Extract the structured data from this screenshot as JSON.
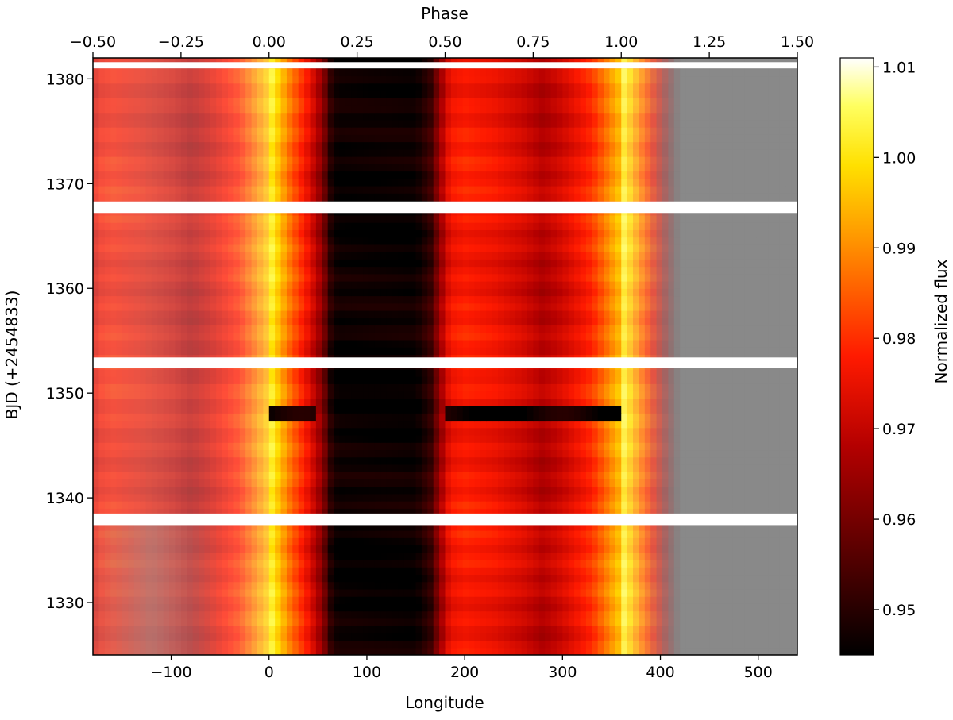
{
  "chart_data": {
    "type": "heatmap",
    "xlabel": "Longitude",
    "ylabel": "BJD (+2454833)",
    "top_xlabel": "Phase",
    "colorbar_label": "Normalized flux",
    "colormap": "afmhot",
    "xlim": [
      -180,
      540
    ],
    "ylim": [
      1325,
      1382
    ],
    "phase_lim": [
      -0.5,
      1.5
    ],
    "clim": [
      0.945,
      1.011
    ],
    "x_ticks": [
      -100,
      0,
      100,
      200,
      300,
      400,
      500
    ],
    "x_tick_labels": [
      "−100",
      "0",
      "100",
      "200",
      "300",
      "400",
      "500"
    ],
    "y_ticks": [
      1330,
      1340,
      1350,
      1360,
      1370,
      1380
    ],
    "y_tick_labels": [
      "1330",
      "1340",
      "1350",
      "1360",
      "1370",
      "1380"
    ],
    "phase_ticks": [
      -0.5,
      -0.25,
      0.0,
      0.25,
      0.5,
      0.75,
      1.0,
      1.25,
      1.5
    ],
    "phase_tick_labels": [
      "−0.50",
      "−0.25",
      "0.00",
      "0.25",
      "0.50",
      "0.75",
      "1.00",
      "1.25",
      "1.50"
    ],
    "colorbar_ticks": [
      0.95,
      0.96,
      0.97,
      0.98,
      0.99,
      1.0,
      1.01
    ],
    "colorbar_tick_labels": [
      "0.95",
      "0.96",
      "0.97",
      "0.98",
      "0.99",
      "1.00",
      "1.01"
    ],
    "flux_profile": {
      "longitude": [
        0,
        20,
        40,
        55,
        62,
        70,
        100,
        150,
        165,
        175,
        185,
        200,
        230,
        260,
        280,
        300,
        330,
        345,
        359.9
      ],
      "flux": [
        1.004,
        0.988,
        0.975,
        0.962,
        0.95,
        0.946,
        0.946,
        0.946,
        0.952,
        0.965,
        0.976,
        0.978,
        0.976,
        0.972,
        0.968,
        0.972,
        0.98,
        0.988,
        0.996
      ]
    },
    "duplicated_regions": [
      {
        "longitude_range": [
          -180,
          0
        ],
        "source": "phase 0.5 to 1.0, lightened"
      },
      {
        "longitude_range": [
          360,
          420
        ],
        "source": "phase 0.0 to 0.17, lightened"
      },
      {
        "longitude_range": [
          420,
          540
        ],
        "source": "masked (gray)"
      }
    ],
    "data_gaps": [
      {
        "bjd": [
          1381.0,
          1381.6
        ],
        "longitude_range": [
          -180,
          540
        ]
      },
      {
        "bjd": [
          1367.2,
          1368.3
        ],
        "longitude_range": [
          -180,
          540
        ]
      },
      {
        "bjd": [
          1352.4,
          1353.4
        ],
        "longitude_range": [
          -180,
          540
        ]
      },
      {
        "bjd": [
          1337.4,
          1338.5
        ],
        "longitude_range": [
          -180,
          540
        ]
      }
    ],
    "dark_event": {
      "bjd": [
        1347.5,
        1349.0
      ],
      "flux": 0.946
    },
    "mask_color": "#898989"
  }
}
